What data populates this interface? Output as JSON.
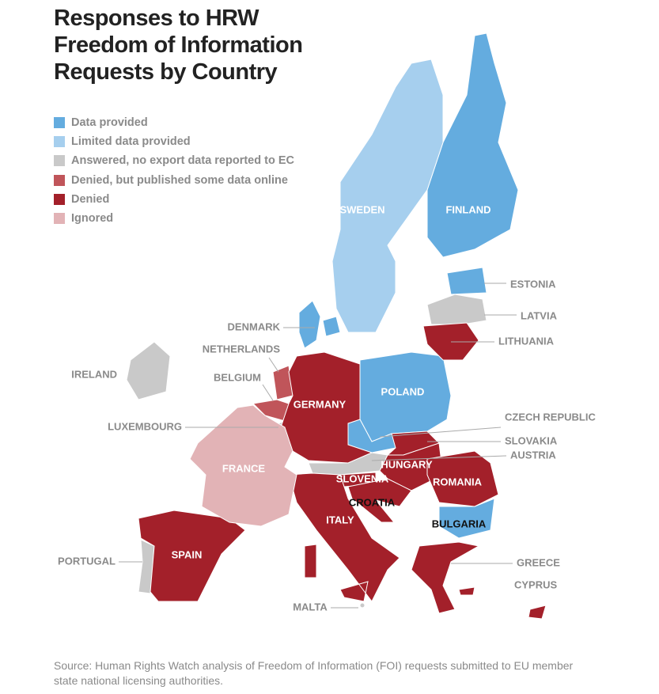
{
  "title": "Responses to HRW Freedom of Information Requests by Country",
  "legend": [
    {
      "label": "Data provided",
      "color": "#64acdf",
      "countries": [
        "FINLAND",
        "ESTONIA",
        "DENMARK",
        "POLAND",
        "CZECH REPUBLIC",
        "BULGARIA"
      ]
    },
    {
      "label": "Limited data provided",
      "color": "#a6cfee",
      "countries": [
        "SWEDEN"
      ]
    },
    {
      "label": "Answered, no export data reported to EC",
      "color": "#c9c9c9",
      "countries": [
        "LATVIA",
        "IRELAND",
        "LUXEMBOURG",
        "AUSTRIA",
        "PORTUGAL",
        "MALTA"
      ]
    },
    {
      "label": "Denied, but published some data online",
      "color": "#c0555a",
      "countries": [
        "NETHERLANDS",
        "BELGIUM"
      ]
    },
    {
      "label": "Denied",
      "color": "#a3202a",
      "countries": [
        "LITHUANIA",
        "GERMANY",
        "SLOVAKIA",
        "HUNGARY",
        "SLOVENIA",
        "ROMANIA",
        "CROATIA",
        "ITALY",
        "SPAIN",
        "GREECE",
        "CYPRUS"
      ]
    },
    {
      "label": "Ignored",
      "color": "#e2b3b6",
      "countries": [
        "FRANCE"
      ]
    }
  ],
  "source": "Source: Human Rights Watch analysis of Freedom of Information (FOI) requests submitted to EU member state national licensing authorities."
}
